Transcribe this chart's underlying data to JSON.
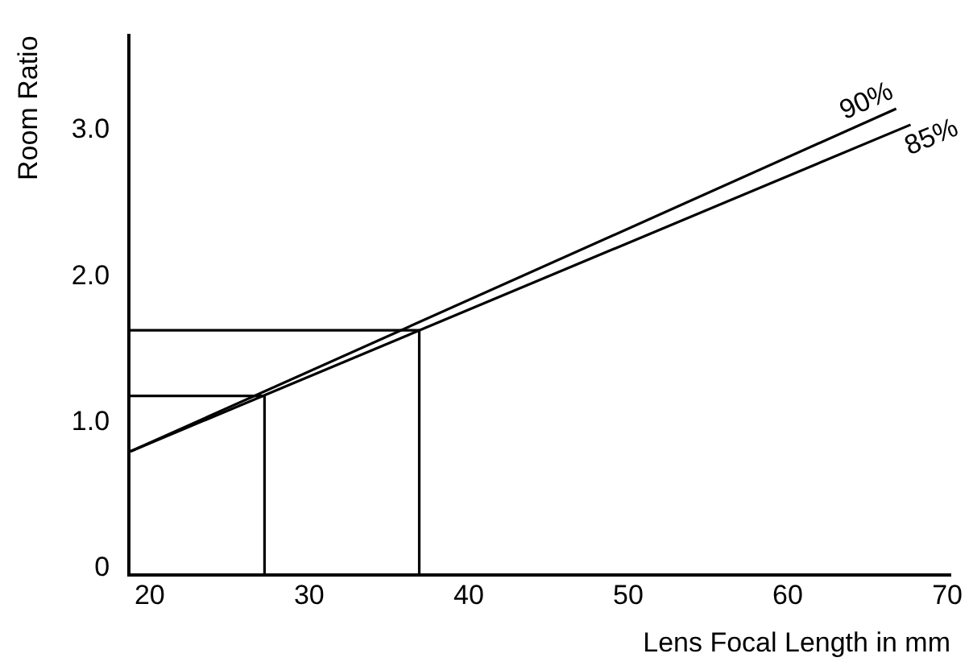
{
  "chart_data": {
    "type": "line",
    "xlabel": "Lens Focal Length in mm",
    "ylabel": "Room Ratio",
    "xlim": [
      18.7,
      70.2
    ],
    "xticks": [
      20,
      30,
      40,
      50,
      60,
      70
    ],
    "ylim": [
      -0.05,
      3.65
    ],
    "yticks": [
      {
        "value": 0,
        "label": "0"
      },
      {
        "value": 1,
        "label": "1.0"
      },
      {
        "value": 2,
        "label": "2.0"
      },
      {
        "value": 3,
        "label": "3.0"
      }
    ],
    "grid": false,
    "legend": false,
    "marker": "none",
    "line_style": "solid",
    "series": [
      {
        "name": "90%",
        "color": "#000000",
        "x": [
          18.8,
          66.8
        ],
        "values": [
          0.8,
          3.15
        ]
      },
      {
        "name": "85%",
        "color": "#000000",
        "x": [
          18.8,
          67.7
        ],
        "values": [
          0.8,
          3.04
        ]
      },
      {
        "color": "#000000",
        "x": [
          18.7,
          27.2,
          27.2
        ],
        "values": [
          1.18,
          1.18,
          -0.05
        ]
      },
      {
        "color": "#000000",
        "x": [
          18.7,
          36.9,
          36.9
        ],
        "values": [
          1.63,
          1.63,
          -0.05
        ]
      }
    ]
  }
}
